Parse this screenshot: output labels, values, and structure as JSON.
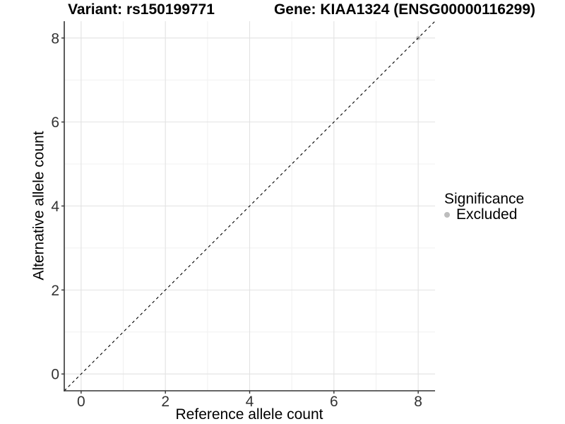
{
  "chart_data": {
    "type": "scatter",
    "title_left": "Variant: rs150199771",
    "title_right": "Gene: KIAA1324 (ENSG00000116299)",
    "xlabel": "Reference allele count",
    "ylabel": "Alternative allele count",
    "xlim": [
      -0.4,
      8.4
    ],
    "ylim": [
      -0.4,
      8.4
    ],
    "x_major_ticks": [
      0,
      2,
      4,
      6,
      8
    ],
    "x_minor_ticks": [
      1,
      3,
      5,
      7
    ],
    "y_major_ticks": [
      0,
      2,
      4,
      6,
      8
    ],
    "y_minor_ticks": [
      1,
      3,
      5,
      7
    ],
    "grid": "major+minor on white panel",
    "identity_line": {
      "slope": 1,
      "intercept": 0,
      "style": "dashed",
      "color": "#000000"
    },
    "series": [
      {
        "name": "Excluded",
        "color": "#BDBDBD",
        "points": [
          {
            "x": 8,
            "y": 8
          }
        ]
      }
    ],
    "legend": {
      "position": "right",
      "title": "Significance",
      "entries": [
        {
          "label": "Excluded",
          "color": "#BDBDBD"
        }
      ]
    }
  },
  "colors": {
    "grid_major": "#E2E2E2",
    "grid_minor": "#EFEFEF",
    "axis_line": "#333333",
    "tick_label": "#333333",
    "point_gray": "#BDBDBD"
  }
}
